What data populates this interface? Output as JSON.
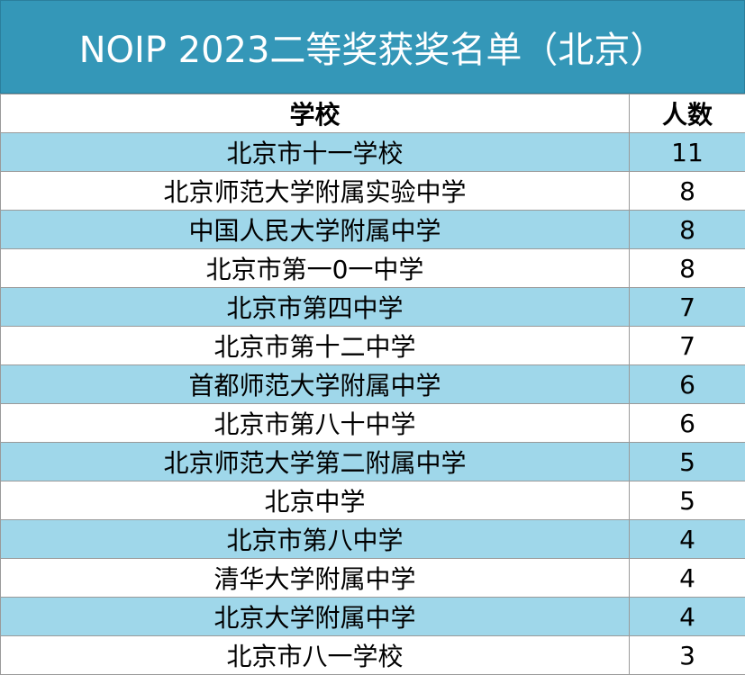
{
  "title": "NOIP 2023二等奖获奖名单（北京）",
  "colors": {
    "title_bg": "#3497b8",
    "row_shade": "#9fd7ea",
    "row_plain": "#ffffff"
  },
  "table": {
    "headers": {
      "school": "学校",
      "count": "人数"
    },
    "rows": [
      {
        "school": "北京市十一学校",
        "count": "11"
      },
      {
        "school": "北京师范大学附属实验中学",
        "count": "8"
      },
      {
        "school": "中国人民大学附属中学",
        "count": "8"
      },
      {
        "school": "北京市第一0一中学",
        "count": "8"
      },
      {
        "school": "北京市第四中学",
        "count": "7"
      },
      {
        "school": "北京市第十二中学",
        "count": "7"
      },
      {
        "school": "首都师范大学附属中学",
        "count": "6"
      },
      {
        "school": "北京市第八十中学",
        "count": "6"
      },
      {
        "school": "北京师范大学第二附属中学",
        "count": "5"
      },
      {
        "school": "北京中学",
        "count": "5"
      },
      {
        "school": "北京市第八中学",
        "count": "4"
      },
      {
        "school": "清华大学附属中学",
        "count": "4"
      },
      {
        "school": "北京大学附属中学",
        "count": "4"
      },
      {
        "school": "北京市八一学校",
        "count": "3"
      }
    ]
  }
}
